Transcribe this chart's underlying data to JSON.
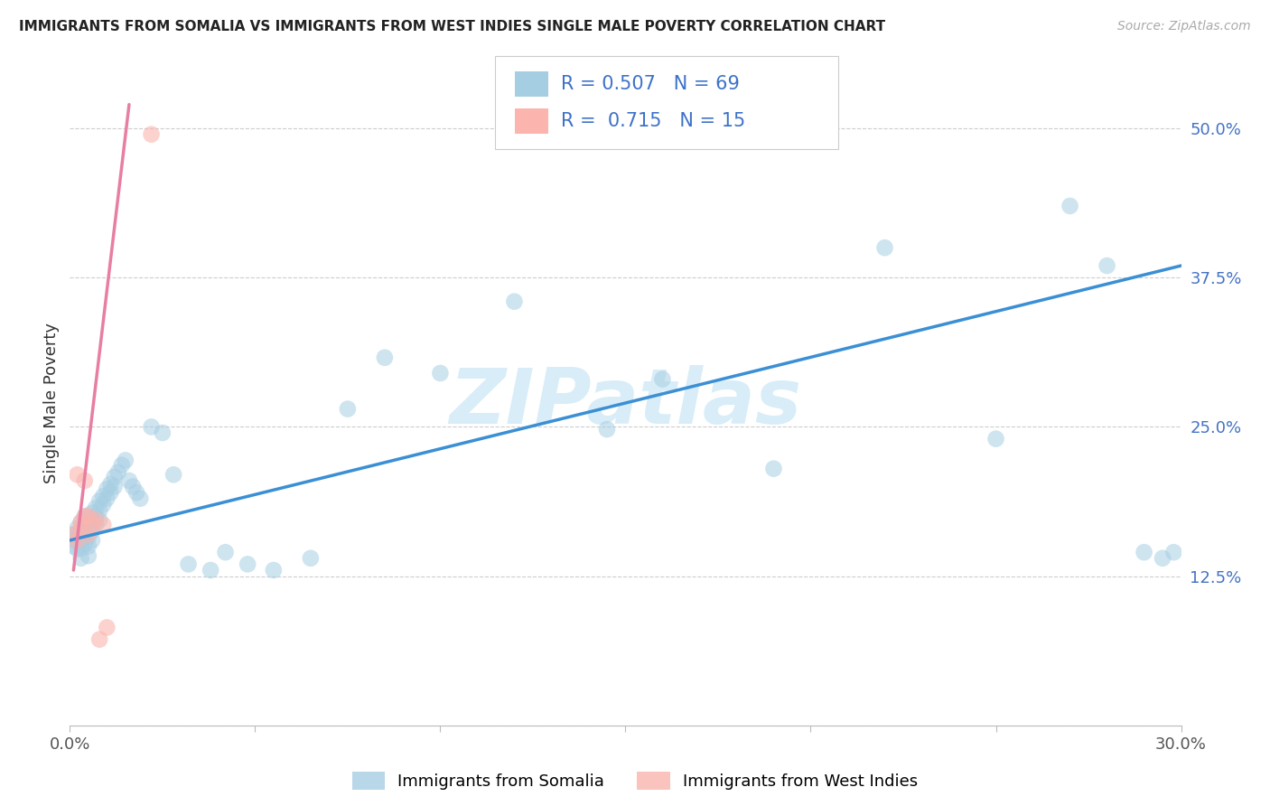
{
  "title": "IMMIGRANTS FROM SOMALIA VS IMMIGRANTS FROM WEST INDIES SINGLE MALE POVERTY CORRELATION CHART",
  "source": "Source: ZipAtlas.com",
  "ylabel": "Single Male Poverty",
  "xlim": [
    0.0,
    0.3
  ],
  "ylim": [
    0.0,
    0.54
  ],
  "legend1_label": "Immigrants from Somalia",
  "legend2_label": "Immigrants from West Indies",
  "R_somalia": 0.507,
  "N_somalia": 69,
  "R_west_indies": 0.715,
  "N_west_indies": 15,
  "somalia_color": "#a6cee3",
  "west_indies_color": "#fbb4ae",
  "somalia_line_color": "#3b8fd4",
  "west_indies_line_color": "#e87ea1",
  "background_color": "#ffffff",
  "grid_color": "#cccccc",
  "watermark_text": "ZIPatlas",
  "watermark_color": "#d8edf8",
  "somalia_x": [
    0.001,
    0.001,
    0.001,
    0.002,
    0.002,
    0.002,
    0.002,
    0.003,
    0.003,
    0.003,
    0.003,
    0.003,
    0.004,
    0.004,
    0.004,
    0.004,
    0.005,
    0.005,
    0.005,
    0.005,
    0.005,
    0.006,
    0.006,
    0.006,
    0.006,
    0.007,
    0.007,
    0.007,
    0.008,
    0.008,
    0.008,
    0.009,
    0.009,
    0.01,
    0.01,
    0.011,
    0.011,
    0.012,
    0.012,
    0.013,
    0.014,
    0.015,
    0.016,
    0.017,
    0.018,
    0.019,
    0.022,
    0.025,
    0.028,
    0.032,
    0.038,
    0.042,
    0.048,
    0.055,
    0.065,
    0.075,
    0.085,
    0.1,
    0.12,
    0.145,
    0.16,
    0.19,
    0.22,
    0.25,
    0.27,
    0.28,
    0.29,
    0.295,
    0.298
  ],
  "somalia_y": [
    0.16,
    0.155,
    0.15,
    0.165,
    0.16,
    0.155,
    0.148,
    0.17,
    0.162,
    0.155,
    0.148,
    0.14,
    0.175,
    0.168,
    0.16,
    0.152,
    0.172,
    0.165,
    0.158,
    0.15,
    0.142,
    0.178,
    0.17,
    0.163,
    0.155,
    0.182,
    0.175,
    0.168,
    0.188,
    0.18,
    0.172,
    0.192,
    0.185,
    0.198,
    0.19,
    0.202,
    0.195,
    0.208,
    0.2,
    0.212,
    0.218,
    0.222,
    0.205,
    0.2,
    0.195,
    0.19,
    0.25,
    0.245,
    0.21,
    0.135,
    0.13,
    0.145,
    0.135,
    0.13,
    0.14,
    0.265,
    0.308,
    0.295,
    0.355,
    0.248,
    0.29,
    0.215,
    0.4,
    0.24,
    0.435,
    0.385,
    0.145,
    0.14,
    0.145
  ],
  "west_indies_x": [
    0.001,
    0.002,
    0.002,
    0.003,
    0.003,
    0.004,
    0.004,
    0.005,
    0.005,
    0.006,
    0.007,
    0.008,
    0.009,
    0.01,
    0.022
  ],
  "west_indies_y": [
    0.16,
    0.155,
    0.21,
    0.17,
    0.165,
    0.205,
    0.175,
    0.175,
    0.16,
    0.168,
    0.172,
    0.072,
    0.168,
    0.082,
    0.495
  ],
  "somalia_line_x": [
    0.0,
    0.3
  ],
  "somalia_line_y": [
    0.155,
    0.385
  ],
  "west_indies_line_x": [
    0.001,
    0.016
  ],
  "west_indies_line_y": [
    0.13,
    0.52
  ]
}
